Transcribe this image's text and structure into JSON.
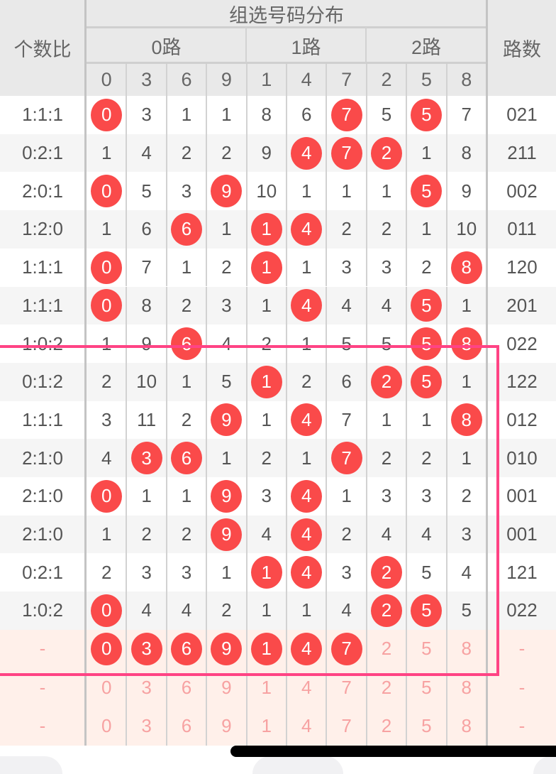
{
  "header": {
    "ratio_label": "个数比",
    "group_title": "组选号码分布",
    "routes": [
      "0路",
      "1路",
      "2路"
    ],
    "route_label": "路数",
    "digits": [
      "0",
      "3",
      "6",
      "9",
      "1",
      "4",
      "7",
      "2",
      "5",
      "8"
    ]
  },
  "colors": {
    "ball": "#fa4a4a",
    "highlight_box": "#ff4384",
    "forecast_bg": "#fff0ea",
    "forecast_text": "#f7a2a2"
  },
  "rows": [
    {
      "ratio": "1:1:1",
      "values": [
        "0",
        "3",
        "1",
        "1",
        "8",
        "6",
        "7",
        "5",
        "5",
        "7"
      ],
      "hit": [
        0,
        6,
        8
      ],
      "route": "021"
    },
    {
      "ratio": "0:2:1",
      "values": [
        "1",
        "4",
        "2",
        "2",
        "9",
        "4",
        "7",
        "2",
        "1",
        "8"
      ],
      "hit": [
        5,
        6,
        7
      ],
      "route": "211"
    },
    {
      "ratio": "2:0:1",
      "values": [
        "0",
        "5",
        "3",
        "9",
        "10",
        "1",
        "1",
        "1",
        "5",
        "9"
      ],
      "hit": [
        0,
        3,
        8
      ],
      "route": "002"
    },
    {
      "ratio": "1:2:0",
      "values": [
        "1",
        "6",
        "6",
        "1",
        "1",
        "4",
        "2",
        "2",
        "1",
        "10"
      ],
      "hit": [
        2,
        4,
        5
      ],
      "route": "011"
    },
    {
      "ratio": "1:1:1",
      "values": [
        "0",
        "7",
        "1",
        "2",
        "1",
        "1",
        "3",
        "3",
        "2",
        "8"
      ],
      "hit": [
        0,
        4,
        9
      ],
      "route": "120"
    },
    {
      "ratio": "1:1:1",
      "values": [
        "0",
        "8",
        "2",
        "3",
        "1",
        "4",
        "4",
        "4",
        "5",
        "1"
      ],
      "hit": [
        0,
        5,
        8
      ],
      "route": "201"
    },
    {
      "ratio": "1:0:2",
      "values": [
        "1",
        "9",
        "6",
        "4",
        "2",
        "1",
        "5",
        "5",
        "5",
        "8"
      ],
      "hit": [
        2,
        8,
        9
      ],
      "route": "022"
    },
    {
      "ratio": "0:1:2",
      "values": [
        "2",
        "10",
        "1",
        "5",
        "1",
        "2",
        "6",
        "2",
        "5",
        "1"
      ],
      "hit": [
        4,
        7,
        8
      ],
      "route": "122"
    },
    {
      "ratio": "1:1:1",
      "values": [
        "3",
        "11",
        "2",
        "9",
        "1",
        "4",
        "7",
        "1",
        "1",
        "8"
      ],
      "hit": [
        3,
        5,
        9
      ],
      "route": "012"
    },
    {
      "ratio": "2:1:0",
      "values": [
        "4",
        "3",
        "6",
        "1",
        "2",
        "1",
        "7",
        "2",
        "2",
        "1"
      ],
      "hit": [
        1,
        2,
        6
      ],
      "route": "010"
    },
    {
      "ratio": "2:1:0",
      "values": [
        "0",
        "1",
        "1",
        "9",
        "3",
        "4",
        "1",
        "3",
        "3",
        "2"
      ],
      "hit": [
        0,
        3,
        5
      ],
      "route": "001"
    },
    {
      "ratio": "2:1:0",
      "values": [
        "1",
        "2",
        "2",
        "9",
        "4",
        "4",
        "2",
        "4",
        "4",
        "3"
      ],
      "hit": [
        3,
        5
      ],
      "route": "001"
    },
    {
      "ratio": "0:2:1",
      "values": [
        "2",
        "3",
        "3",
        "1",
        "1",
        "4",
        "3",
        "2",
        "5",
        "4"
      ],
      "hit": [
        4,
        5,
        7
      ],
      "route": "121"
    },
    {
      "ratio": "1:0:2",
      "values": [
        "0",
        "4",
        "4",
        "2",
        "1",
        "1",
        "4",
        "2",
        "5",
        "5"
      ],
      "hit": [
        0,
        7,
        8
      ],
      "route": "022"
    }
  ],
  "forecast_rows": [
    {
      "ratio": "-",
      "values": [
        "0",
        "3",
        "6",
        "9",
        "1",
        "4",
        "7",
        "2",
        "5",
        "8"
      ],
      "hit": [
        0,
        1,
        2,
        3,
        4,
        5,
        6
      ],
      "route": "-"
    },
    {
      "ratio": "-",
      "values": [
        "0",
        "3",
        "6",
        "9",
        "1",
        "4",
        "7",
        "2",
        "5",
        "8"
      ],
      "hit": [],
      "route": "-"
    },
    {
      "ratio": "-",
      "values": [
        "0",
        "3",
        "6",
        "9",
        "1",
        "4",
        "7",
        "2",
        "5",
        "8"
      ],
      "hit": [],
      "route": "-"
    }
  ]
}
